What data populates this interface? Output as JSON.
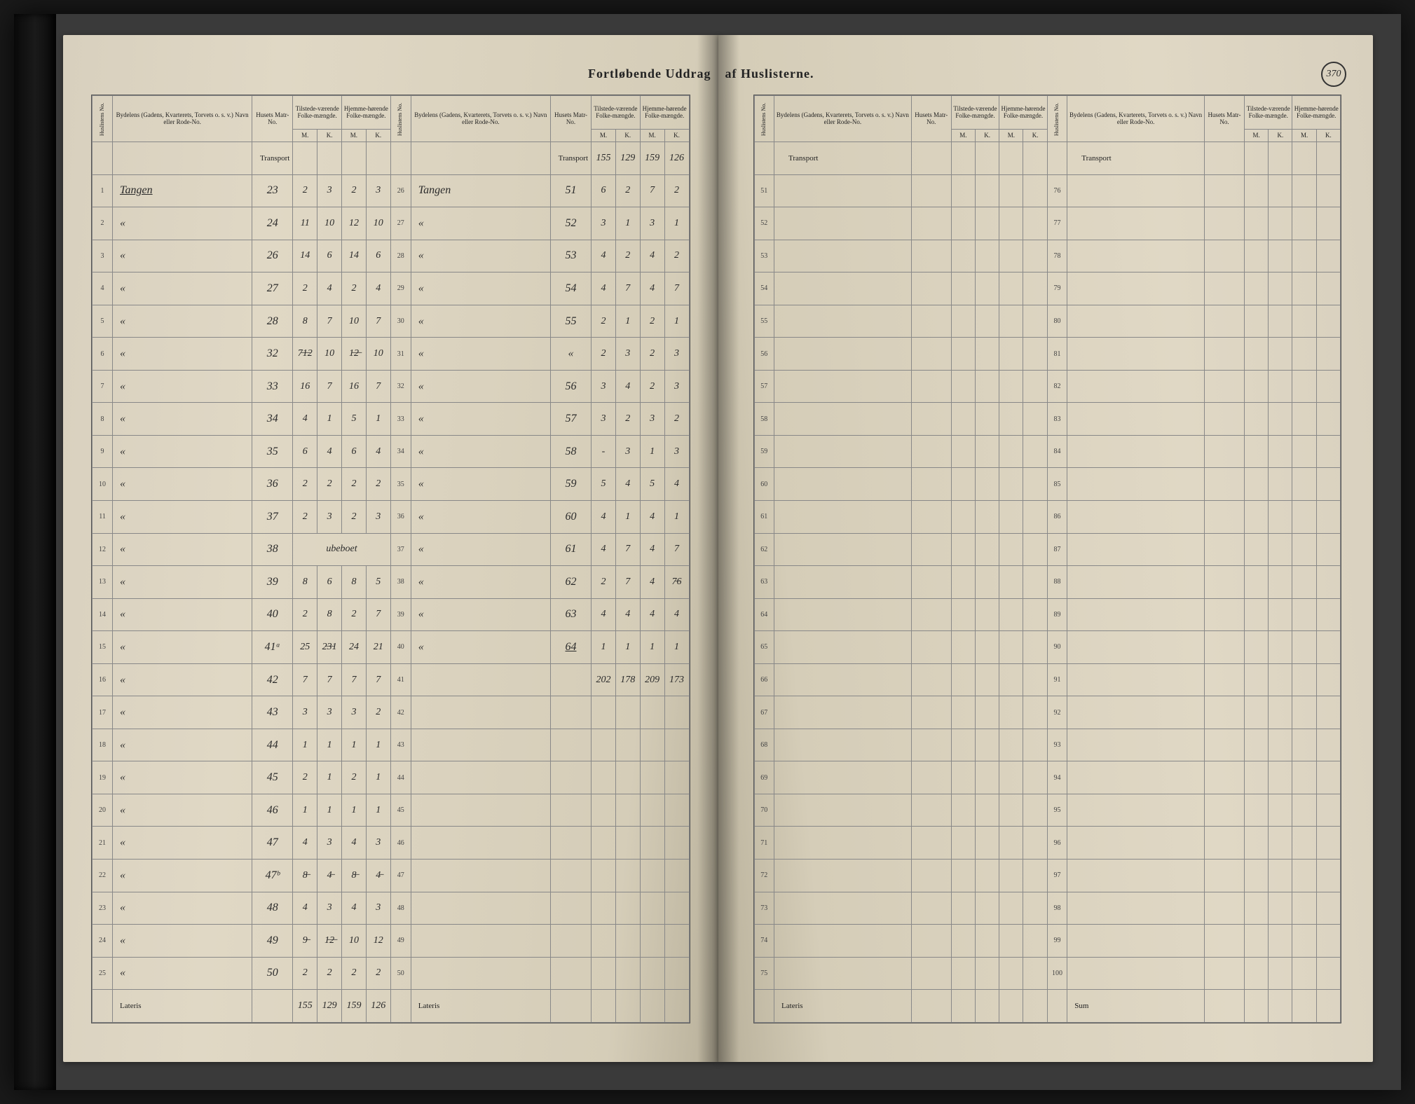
{
  "title_left": "Fortløbende Uddrag",
  "title_right": "af Huslisterne.",
  "page_number": "370",
  "headers": {
    "husliste": "Huslistens No.",
    "bydel": "Bydelens (Gadens, Kvarterets, Torvets o. s. v.) Navn eller Rode-No.",
    "matr": "Husets Matr-No.",
    "tilstede": "Tilstede-værende Folke-mængde.",
    "hjemme": "Hjemme-hørende Folke-mængde.",
    "m": "M.",
    "k": "K.",
    "transport": "Transport",
    "lateris": "Lateris",
    "sum": "Sum"
  },
  "left_page": {
    "block1": {
      "transport_in": [
        "",
        "",
        "",
        ""
      ],
      "rows": [
        {
          "n": "1",
          "name": "Tangen",
          "matr": "23",
          "tm": "2",
          "tk": "3",
          "hm": "2",
          "hk": "3"
        },
        {
          "n": "2",
          "name": "«",
          "matr": "24",
          "tm": "11",
          "tk": "10",
          "hm": "12",
          "hk": "10"
        },
        {
          "n": "3",
          "name": "«",
          "matr": "26",
          "tm": "14",
          "tk": "6",
          "hm": "14",
          "hk": "6"
        },
        {
          "n": "4",
          "name": "«",
          "matr": "27",
          "tm": "2",
          "tk": "4",
          "hm": "2",
          "hk": "4"
        },
        {
          "n": "5",
          "name": "«",
          "matr": "28",
          "tm": "8",
          "tk": "7",
          "hm": "10",
          "hk": "7"
        },
        {
          "n": "6",
          "name": "«",
          "matr": "32",
          "tm": "7̶1̶2",
          "tk": "10",
          "hm": "1̶2̶",
          "hk": "10"
        },
        {
          "n": "7",
          "name": "«",
          "matr": "33",
          "tm": "16",
          "tk": "7",
          "hm": "16",
          "hk": "7"
        },
        {
          "n": "8",
          "name": "«",
          "matr": "34",
          "tm": "4",
          "tk": "1",
          "hm": "5",
          "hk": "1"
        },
        {
          "n": "9",
          "name": "«",
          "matr": "35",
          "tm": "6",
          "tk": "4",
          "hm": "6",
          "hk": "4"
        },
        {
          "n": "10",
          "name": "«",
          "matr": "36",
          "tm": "2",
          "tk": "2",
          "hm": "2",
          "hk": "2"
        },
        {
          "n": "11",
          "name": "«",
          "matr": "37",
          "tm": "2",
          "tk": "3",
          "hm": "2",
          "hk": "3"
        },
        {
          "n": "12",
          "name": "«",
          "matr": "38",
          "tm": "ubeboet",
          "tk": "",
          "hm": "",
          "hk": ""
        },
        {
          "n": "13",
          "name": "«",
          "matr": "39",
          "tm": "8",
          "tk": "6",
          "hm": "8",
          "hk": "5"
        },
        {
          "n": "14",
          "name": "«",
          "matr": "40",
          "tm": "2",
          "tk": "8",
          "hm": "2",
          "hk": "7"
        },
        {
          "n": "15",
          "name": "«",
          "matr": "41ᵃ",
          "tm": "25",
          "tk": "2̶3̶1",
          "hm": "24",
          "hk": "21"
        },
        {
          "n": "16",
          "name": "«",
          "matr": "42",
          "tm": "7",
          "tk": "7",
          "hm": "7",
          "hk": "7"
        },
        {
          "n": "17",
          "name": "«",
          "matr": "43",
          "tm": "3",
          "tk": "3",
          "hm": "3",
          "hk": "2"
        },
        {
          "n": "18",
          "name": "«",
          "matr": "44",
          "tm": "1",
          "tk": "1",
          "hm": "1",
          "hk": "1"
        },
        {
          "n": "19",
          "name": "«",
          "matr": "45",
          "tm": "2",
          "tk": "1",
          "hm": "2",
          "hk": "1"
        },
        {
          "n": "20",
          "name": "«",
          "matr": "46",
          "tm": "1",
          "tk": "1",
          "hm": "1",
          "hk": "1"
        },
        {
          "n": "21",
          "name": "«",
          "matr": "47",
          "tm": "4",
          "tk": "3",
          "hm": "4",
          "hk": "3"
        },
        {
          "n": "22",
          "name": "«",
          "matr": "47ᵇ",
          "tm": "8̶",
          "tk": "4̶",
          "hm": "8̶",
          "hk": "4̶"
        },
        {
          "n": "23",
          "name": "«",
          "matr": "48",
          "tm": "4",
          "tk": "3",
          "hm": "4",
          "hk": "3"
        },
        {
          "n": "24",
          "name": "«",
          "matr": "49",
          "tm": "9̶",
          "tk": "1̶2̶",
          "hm": "10",
          "hk": "12"
        },
        {
          "n": "25",
          "name": "«",
          "matr": "50",
          "tm": "2",
          "tk": "2",
          "hm": "2",
          "hk": "2"
        }
      ],
      "lateris": [
        "155",
        "129",
        "159",
        "126"
      ]
    },
    "block2": {
      "transport_in": [
        "155",
        "129",
        "159",
        "126"
      ],
      "rows": [
        {
          "n": "26",
          "name": "Tangen",
          "matr": "51",
          "tm": "6",
          "tk": "2",
          "hm": "7",
          "hk": "2"
        },
        {
          "n": "27",
          "name": "«",
          "matr": "52",
          "tm": "3",
          "tk": "1",
          "hm": "3",
          "hk": "1"
        },
        {
          "n": "28",
          "name": "«",
          "matr": "53",
          "tm": "4",
          "tk": "2",
          "hm": "4",
          "hk": "2"
        },
        {
          "n": "29",
          "name": "«",
          "matr": "54",
          "tm": "4",
          "tk": "7",
          "hm": "4",
          "hk": "7"
        },
        {
          "n": "30",
          "name": "«",
          "matr": "55",
          "tm": "2",
          "tk": "1",
          "hm": "2",
          "hk": "1"
        },
        {
          "n": "31",
          "name": "«",
          "matr": "«",
          "tm": "2",
          "tk": "3",
          "hm": "2",
          "hk": "3"
        },
        {
          "n": "32",
          "name": "«",
          "matr": "56",
          "tm": "3",
          "tk": "4",
          "hm": "2",
          "hk": "3"
        },
        {
          "n": "33",
          "name": "«",
          "matr": "57",
          "tm": "3",
          "tk": "2",
          "hm": "3",
          "hk": "2"
        },
        {
          "n": "34",
          "name": "«",
          "matr": "58",
          "tm": "-",
          "tk": "3",
          "hm": "1",
          "hk": "3"
        },
        {
          "n": "35",
          "name": "«",
          "matr": "59",
          "tm": "5",
          "tk": "4",
          "hm": "5",
          "hk": "4"
        },
        {
          "n": "36",
          "name": "«",
          "matr": "60",
          "tm": "4",
          "tk": "1",
          "hm": "4",
          "hk": "1"
        },
        {
          "n": "37",
          "name": "«",
          "matr": "61",
          "tm": "4",
          "tk": "7",
          "hm": "4",
          "hk": "7"
        },
        {
          "n": "38",
          "name": "«",
          "matr": "62",
          "tm": "2",
          "tk": "7",
          "hm": "4",
          "hk": "7̶6"
        },
        {
          "n": "39",
          "name": "«",
          "matr": "63",
          "tm": "4",
          "tk": "4",
          "hm": "4",
          "hk": "4"
        },
        {
          "n": "40",
          "name": "«",
          "matr": "64",
          "tm": "1",
          "tk": "1",
          "hm": "1",
          "hk": "1"
        },
        {
          "n": "41",
          "name": "",
          "matr": "",
          "tm": "202",
          "tk": "178",
          "hm": "209",
          "hk": "173"
        },
        {
          "n": "42",
          "name": "",
          "matr": "",
          "tm": "",
          "tk": "",
          "hm": "",
          "hk": ""
        },
        {
          "n": "43",
          "name": "",
          "matr": "",
          "tm": "",
          "tk": "",
          "hm": "",
          "hk": ""
        },
        {
          "n": "44",
          "name": "",
          "matr": "",
          "tm": "",
          "tk": "",
          "hm": "",
          "hk": ""
        },
        {
          "n": "45",
          "name": "",
          "matr": "",
          "tm": "",
          "tk": "",
          "hm": "",
          "hk": ""
        },
        {
          "n": "46",
          "name": "",
          "matr": "",
          "tm": "",
          "tk": "",
          "hm": "",
          "hk": ""
        },
        {
          "n": "47",
          "name": "",
          "matr": "",
          "tm": "",
          "tk": "",
          "hm": "",
          "hk": ""
        },
        {
          "n": "48",
          "name": "",
          "matr": "",
          "tm": "",
          "tk": "",
          "hm": "",
          "hk": ""
        },
        {
          "n": "49",
          "name": "",
          "matr": "",
          "tm": "",
          "tk": "",
          "hm": "",
          "hk": ""
        },
        {
          "n": "50",
          "name": "",
          "matr": "",
          "tm": "",
          "tk": "",
          "hm": "",
          "hk": ""
        }
      ],
      "lateris": [
        "",
        "",
        "",
        ""
      ]
    }
  },
  "right_page": {
    "block1": {
      "start": 51,
      "end": 75
    },
    "block2": {
      "start": 76,
      "end": 100
    }
  },
  "colors": {
    "paper": "#ddd4c0",
    "ink_print": "#222222",
    "ink_hand": "#2a2a2a",
    "rule": "#888888",
    "background": "#1a1a1a"
  }
}
